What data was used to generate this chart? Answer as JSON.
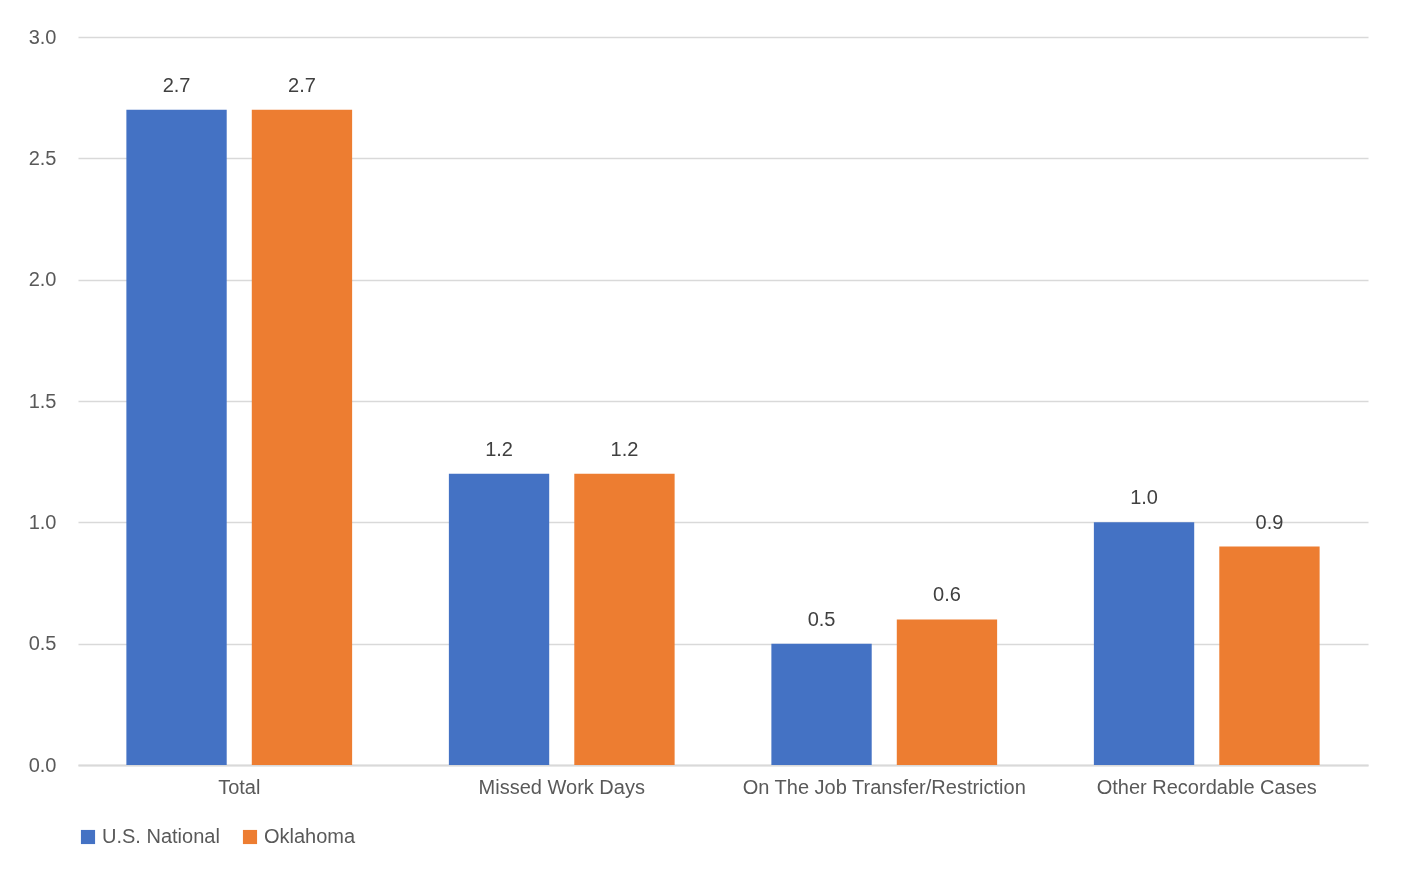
{
  "chart_data": {
    "type": "bar",
    "categories": [
      "Total",
      "Missed Work Days",
      "On The Job Transfer/Restriction",
      "Other Recordable Cases"
    ],
    "series": [
      {
        "name": "U.S. National",
        "color": "#4472c4",
        "values": [
          2.7,
          1.2,
          0.5,
          1.0
        ],
        "value_labels": [
          "2.7",
          "1.2",
          "0.5",
          "1.0"
        ]
      },
      {
        "name": "Oklahoma",
        "color": "#ed7d31",
        "values": [
          2.7,
          1.2,
          0.6,
          0.9
        ],
        "value_labels": [
          "2.7",
          "1.2",
          "0.6",
          "0.9"
        ]
      }
    ],
    "ylim": [
      0,
      3
    ],
    "yticks": [
      {
        "value": 0,
        "label": "0.0"
      },
      {
        "value": 0.5,
        "label": "0.5"
      },
      {
        "value": 1,
        "label": "1.0"
      },
      {
        "value": 1.5,
        "label": "1.5"
      },
      {
        "value": 2,
        "label": "2.0"
      },
      {
        "value": 2.5,
        "label": "2.5"
      },
      {
        "value": 3,
        "label": "3.0"
      }
    ],
    "grid": "y",
    "legend": "bottom"
  }
}
